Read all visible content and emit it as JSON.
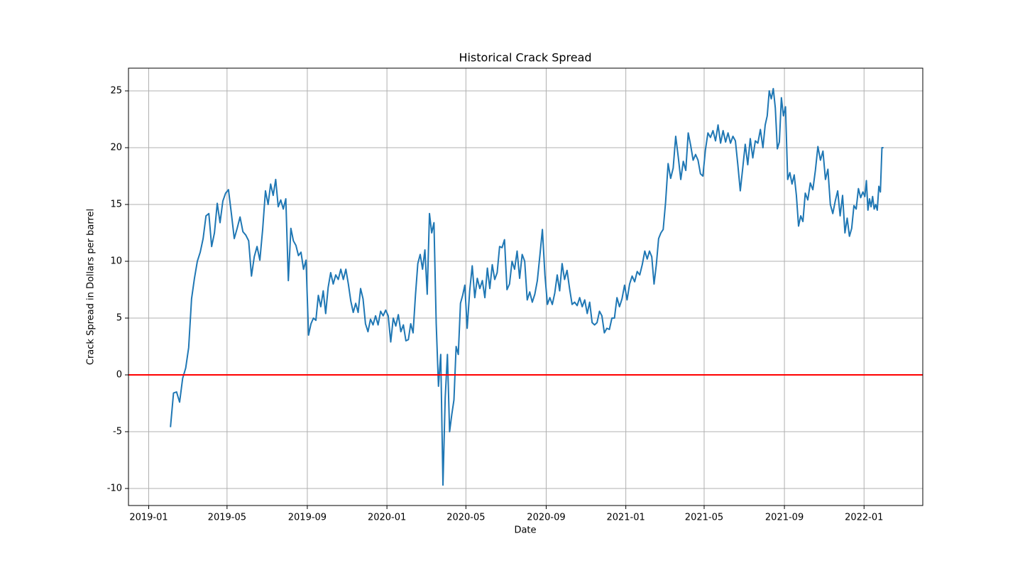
{
  "chart_data": {
    "type": "line",
    "title": "Historical Crack Spread",
    "xlabel": "Date",
    "ylabel": "Crack Spread in Dollars per barrel",
    "color": "#1f77b4",
    "grid": true,
    "hline": {
      "value": 0,
      "color": "#ff0000"
    },
    "xlim": [
      "2018-12",
      "2022-04"
    ],
    "xticks": [
      "2019-01",
      "2019-05",
      "2019-09",
      "2020-01",
      "2020-05",
      "2020-09",
      "2021-01",
      "2021-05",
      "2021-09",
      "2022-01"
    ],
    "ylim": [
      -11.5,
      27
    ],
    "yticks": [
      -10,
      -5,
      0,
      5,
      10,
      15,
      20,
      25
    ],
    "x": [
      "2019-02",
      "2019-02",
      "2019-02",
      "2019-02",
      "2019-02",
      "2019-02",
      "2019-03",
      "2019-03",
      "2019-03",
      "2019-03",
      "2019-03",
      "2019-03",
      "2019-03",
      "2019-04",
      "2019-04",
      "2019-04",
      "2019-04",
      "2019-04",
      "2019-04",
      "2019-04",
      "2019-05",
      "2019-05",
      "2019-05",
      "2019-05",
      "2019-05",
      "2019-05",
      "2019-05",
      "2019-06",
      "2019-06",
      "2019-06",
      "2019-06",
      "2019-06",
      "2019-06",
      "2019-06",
      "2019-07",
      "2019-07",
      "2019-07",
      "2019-07",
      "2019-07",
      "2019-07",
      "2019-07",
      "2019-07",
      "2019-08",
      "2019-08",
      "2019-08",
      "2019-08",
      "2019-08",
      "2019-08",
      "2019-08",
      "2019-08",
      "2019-09",
      "2019-09",
      "2019-09",
      "2019-09",
      "2019-09",
      "2019-09",
      "2019-09",
      "2019-09",
      "2019-10",
      "2019-10",
      "2019-10",
      "2019-10",
      "2019-10",
      "2019-10",
      "2019-10",
      "2019-10",
      "2019-11",
      "2019-11",
      "2019-11",
      "2019-11",
      "2019-11",
      "2019-11",
      "2019-11",
      "2019-11",
      "2019-12",
      "2019-12",
      "2019-12",
      "2019-12",
      "2019-12",
      "2019-12",
      "2019-12",
      "2019-12",
      "2020-01",
      "2020-01",
      "2020-01",
      "2020-01",
      "2020-01",
      "2020-01",
      "2020-01",
      "2020-01",
      "2020-02",
      "2020-02",
      "2020-02",
      "2020-02",
      "2020-02",
      "2020-02",
      "2020-02",
      "2020-02",
      "2020-03",
      "2020-03",
      "2020-03",
      "2020-03",
      "2020-03",
      "2020-03",
      "2020-03",
      "2020-03",
      "2020-03",
      "2020-04",
      "2020-04",
      "2020-04",
      "2020-04",
      "2020-04",
      "2020-04",
      "2020-04",
      "2020-04",
      "2020-04",
      "2020-05",
      "2020-05",
      "2020-05",
      "2020-05",
      "2020-05",
      "2020-05",
      "2020-05",
      "2020-05",
      "2020-06",
      "2020-06",
      "2020-06",
      "2020-06",
      "2020-06",
      "2020-06",
      "2020-06",
      "2020-06",
      "2020-07",
      "2020-07",
      "2020-07",
      "2020-07",
      "2020-07",
      "2020-07",
      "2020-07",
      "2020-07",
      "2020-08",
      "2020-08",
      "2020-08",
      "2020-08",
      "2020-08",
      "2020-08",
      "2020-08",
      "2020-08",
      "2020-09",
      "2020-09",
      "2020-09",
      "2020-09",
      "2020-09",
      "2020-09",
      "2020-09",
      "2020-09",
      "2020-10",
      "2020-10",
      "2020-10",
      "2020-10",
      "2020-10",
      "2020-10",
      "2020-10",
      "2020-10",
      "2020-11",
      "2020-11",
      "2020-11",
      "2020-11",
      "2020-11",
      "2020-11",
      "2020-11",
      "2020-11",
      "2020-12",
      "2020-12",
      "2020-12",
      "2020-12",
      "2020-12",
      "2020-12",
      "2020-12",
      "2020-12",
      "2021-01",
      "2021-01",
      "2021-01",
      "2021-01",
      "2021-01",
      "2021-01",
      "2021-01",
      "2021-01",
      "2021-02",
      "2021-02",
      "2021-02",
      "2021-02",
      "2021-02",
      "2021-02",
      "2021-02",
      "2021-02",
      "2021-03",
      "2021-03",
      "2021-03",
      "2021-03",
      "2021-03",
      "2021-03",
      "2021-03",
      "2021-03",
      "2021-04",
      "2021-04",
      "2021-04",
      "2021-04",
      "2021-04",
      "2021-04",
      "2021-04",
      "2021-04",
      "2021-05",
      "2021-05",
      "2021-05",
      "2021-05",
      "2021-05",
      "2021-05",
      "2021-05",
      "2021-05",
      "2021-06",
      "2021-06",
      "2021-06",
      "2021-06",
      "2021-06",
      "2021-06",
      "2021-06",
      "2021-06",
      "2021-07",
      "2021-07",
      "2021-07",
      "2021-07",
      "2021-07",
      "2021-07",
      "2021-07",
      "2021-07",
      "2021-08",
      "2021-08",
      "2021-08",
      "2021-08",
      "2021-08",
      "2021-08",
      "2021-08",
      "2021-08",
      "2021-08",
      "2021-08",
      "2021-09",
      "2021-09",
      "2021-09",
      "2021-09",
      "2021-09",
      "2021-09",
      "2021-09",
      "2021-09",
      "2021-09",
      "2021-10",
      "2021-10",
      "2021-10",
      "2021-10",
      "2021-10",
      "2021-10",
      "2021-10",
      "2021-10",
      "2021-11",
      "2021-11",
      "2021-11",
      "2021-11",
      "2021-11",
      "2021-11",
      "2021-11",
      "2021-11",
      "2021-12",
      "2021-12",
      "2021-12",
      "2021-12",
      "2021-12",
      "2021-12",
      "2021-12",
      "2021-12",
      "2021-12",
      "2022-01",
      "2022-01",
      "2022-01",
      "2022-01",
      "2022-01",
      "2022-01",
      "2022-01",
      "2022-01",
      "2022-01",
      "2022-01",
      "2022-01",
      "2022-01",
      "2022-01"
    ],
    "values": [
      -4.6,
      -1.6,
      -1.5,
      -2.4,
      -0.3,
      0.6,
      2.4,
      6.7,
      8.5,
      10,
      10.8,
      12,
      14,
      14.2,
      11.3,
      12.5,
      15.1,
      13.4,
      15.3,
      16,
      16.3,
      14.2,
      12,
      12.9,
      13.9,
      12.6,
      12.3,
      11.8,
      8.7,
      10.4,
      11.3,
      10.1,
      12.8,
      16.2,
      15,
      16.8,
      15.8,
      17.2,
      14.8,
      15.4,
      14.6,
      15.5,
      8.3,
      12.9,
      11.8,
      11.4,
      10.5,
      10.8,
      9.3,
      10.1,
      3.5,
      4.5,
      5,
      4.8,
      7,
      6,
      7.4,
      5.4,
      7.7,
      9,
      8,
      8.8,
      8.4,
      9.3,
      8.4,
      9.3,
      8,
      6.5,
      5.5,
      6.3,
      5.5,
      7.6,
      6.7,
      4.5,
      3.8,
      4.9,
      4.4,
      5.2,
      4.4,
      5.6,
      5.2,
      5.7,
      5.2,
      2.9,
      5,
      4.3,
      5.3,
      3.8,
      4.4,
      3,
      3.1,
      4.5,
      3.7,
      7,
      9.8,
      10.6,
      9.3,
      11,
      7.1,
      14.2,
      12.5,
      13.4,
      4.5,
      -1,
      1.8,
      -9.7,
      -2,
      1.8,
      -5,
      -3.5,
      -2.2,
      2.5,
      1.8,
      6.3,
      7,
      7.9,
      4.1,
      7.4,
      9.6,
      6.8,
      8.5,
      7.6,
      8.3,
      6.8,
      9.4,
      7.6,
      9.7,
      8.4,
      9,
      11.3,
      11.2,
      11.9,
      7.5,
      8,
      10,
      9.3,
      10.9,
      8.5,
      10.6,
      10,
      6.6,
      7.3,
      6.4,
      7.1,
      8.3,
      10.5,
      12.8,
      8.8,
      6.2,
      6.8,
      6.2,
      7.2,
      8.8,
      7.4,
      9.8,
      8.4,
      9.2,
      7.6,
      6.2,
      6.4,
      6.1,
      6.8,
      6,
      6.6,
      5.4,
      6.4,
      4.6,
      4.4,
      4.6,
      5.6,
      5.2,
      3.7,
      4.1,
      4,
      5,
      5,
      6.8,
      6,
      6.7,
      7.9,
      6.6,
      8,
      8.7,
      8.2,
      9.1,
      8.8,
      9.7,
      10.9,
      10.2,
      10.9,
      10.4,
      8,
      9.7,
      12,
      12.5,
      12.8,
      15.2,
      18.6,
      17.3,
      18.2,
      21,
      19.2,
      17.2,
      18.8,
      18,
      21.3,
      20.2,
      18.9,
      19.4,
      18.9,
      17.7,
      17.5,
      19.8,
      21.3,
      20.9,
      21.5,
      20.6,
      22,
      20.4,
      21.5,
      20.5,
      21.3,
      20.4,
      21,
      20.6,
      18.5,
      16.2,
      18.2,
      20.3,
      18.5,
      20.8,
      19.1,
      20.6,
      20.4,
      21.6,
      20,
      22,
      22.8,
      25,
      24.3,
      25.2,
      23.5,
      19.9,
      20.5,
      24.4,
      22.8,
      23.6,
      17.2,
      17.8,
      16.8,
      17.6,
      15.8,
      13.1,
      14,
      13.5,
      16,
      15.4,
      16.9,
      16.3,
      18,
      20.1,
      18.9,
      19.7,
      17.2,
      18.1,
      15,
      14.2,
      15.3,
      16.2,
      14,
      15.8,
      12.5,
      13.8,
      12.2,
      12.9,
      14.9,
      14.6,
      16.4,
      15.6,
      16.1,
      15.7,
      17.1,
      14.5,
      15.5,
      14.8,
      15.7,
      14.6,
      15,
      14.5,
      16.6,
      16.1,
      20,
      20
    ]
  }
}
